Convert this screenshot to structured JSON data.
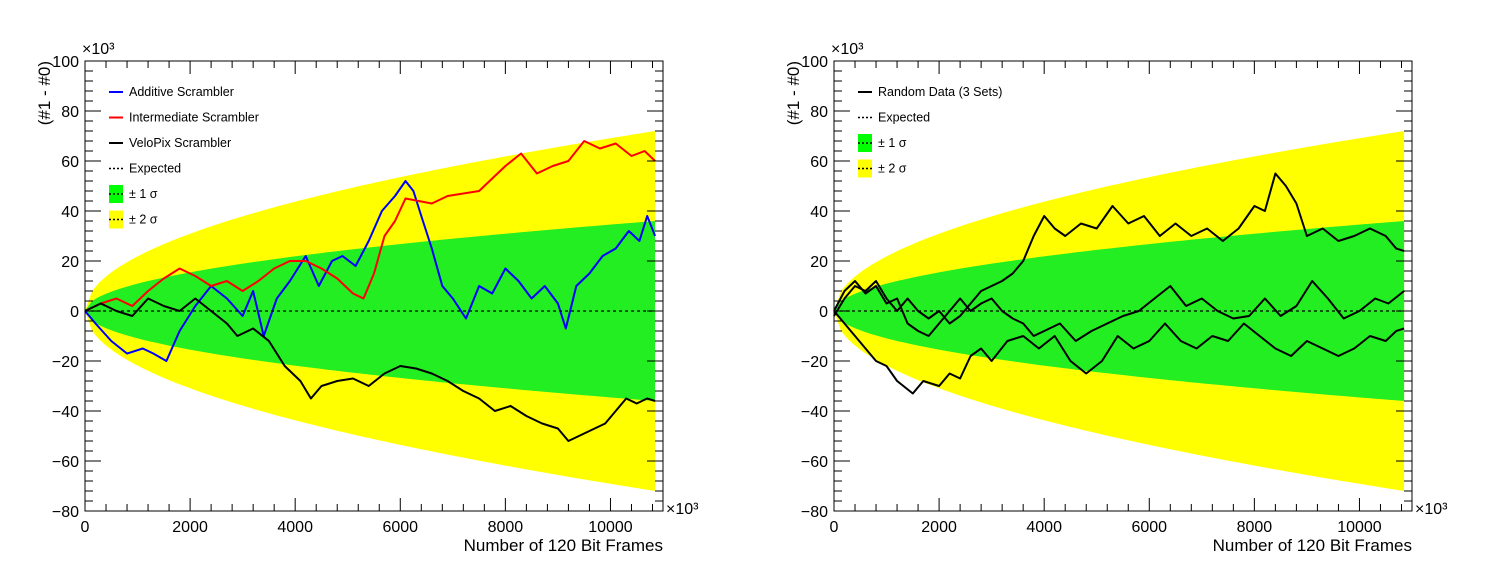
{
  "chart_data": [
    {
      "type": "line",
      "xlabel": "Number of 120 Bit Frames",
      "ylabel": "(#1 - #0)",
      "x_multiplier": "×10³",
      "y_multiplier": "×10³",
      "xlim": [
        0,
        11000
      ],
      "ylim": [
        -80,
        100
      ],
      "xticks": [
        0,
        2000,
        4000,
        6000,
        8000,
        10000
      ],
      "yticks": [
        -80,
        -60,
        -40,
        -20,
        0,
        20,
        40,
        60,
        80,
        100
      ],
      "x_tick_labels": [
        "0",
        "2000",
        "4000",
        "6000",
        "8000",
        "10000"
      ],
      "y_tick_labels": [
        "−80",
        "−60",
        "−40",
        "−20",
        "0",
        "20",
        "40",
        "60",
        "80",
        "100"
      ],
      "band_x_max": 10850,
      "band_1sigma_at_max": 36,
      "band_2sigma_at_max": 72,
      "legend_position": "top-left",
      "legend": [
        {
          "label": "Additive Scrambler",
          "kind": "line",
          "color": "#0000ff"
        },
        {
          "label": "Intermediate Scrambler",
          "kind": "line",
          "color": "#ff0000"
        },
        {
          "label": "VeloPix Scrambler",
          "kind": "line",
          "color": "#000000"
        },
        {
          "label": "Expected",
          "kind": "dashed",
          "color": "#000000"
        },
        {
          "label": "± 1 σ",
          "kind": "band",
          "color": "#00ff00"
        },
        {
          "label": "± 2 σ",
          "kind": "band",
          "color": "#ffff00"
        }
      ],
      "band_colors": {
        "one_sigma": "#22ee22",
        "two_sigma": "#ffff00"
      },
      "series": [
        {
          "name": "Additive Scrambler",
          "color": "#0000ff",
          "x": [
            0,
            200,
            500,
            800,
            1100,
            1300,
            1550,
            1800,
            2100,
            2400,
            2700,
            3000,
            3200,
            3400,
            3650,
            3900,
            4200,
            4450,
            4700,
            4900,
            5150,
            5400,
            5650,
            5900,
            6100,
            6250,
            6400,
            6600,
            6800,
            7000,
            7250,
            7500,
            7750,
            8000,
            8250,
            8500,
            8750,
            9000,
            9150,
            9350,
            9600,
            9850,
            10100,
            10350,
            10550,
            10700,
            10850
          ],
          "y": [
            0,
            -5,
            -12,
            -17,
            -15,
            -17,
            -20,
            -8,
            2,
            10,
            5,
            -2,
            8,
            -10,
            5,
            12,
            22,
            10,
            20,
            22,
            18,
            28,
            40,
            46,
            52,
            48,
            38,
            25,
            10,
            5,
            -3,
            10,
            7,
            17,
            12,
            5,
            10,
            3,
            -7,
            10,
            15,
            22,
            25,
            32,
            28,
            38,
            30
          ]
        },
        {
          "name": "Intermediate Scrambler",
          "color": "#ff0000",
          "x": [
            0,
            300,
            600,
            900,
            1200,
            1500,
            1800,
            2100,
            2400,
            2700,
            3000,
            3300,
            3600,
            3900,
            4200,
            4500,
            4800,
            5100,
            5300,
            5500,
            5700,
            5900,
            6100,
            6350,
            6600,
            6900,
            7200,
            7500,
            7750,
            8000,
            8300,
            8600,
            8900,
            9200,
            9500,
            9800,
            10100,
            10400,
            10650,
            10850
          ],
          "y": [
            0,
            3,
            5,
            2,
            8,
            13,
            17,
            14,
            10,
            12,
            8,
            12,
            17,
            20,
            20,
            17,
            13,
            7,
            5,
            15,
            30,
            36,
            45,
            44,
            43,
            46,
            47,
            48,
            53,
            58,
            63,
            55,
            58,
            60,
            68,
            65,
            67,
            62,
            64,
            60
          ]
        },
        {
          "name": "VeloPix Scrambler",
          "color": "#000000",
          "x": [
            0,
            300,
            600,
            900,
            1200,
            1500,
            1800,
            2100,
            2400,
            2700,
            2900,
            3200,
            3500,
            3800,
            4100,
            4300,
            4500,
            4800,
            5100,
            5400,
            5700,
            6000,
            6300,
            6600,
            6900,
            7200,
            7500,
            7800,
            8100,
            8400,
            8700,
            9000,
            9200,
            9400,
            9600,
            9900,
            10100,
            10300,
            10500,
            10700,
            10850
          ],
          "y": [
            0,
            3,
            0,
            -2,
            5,
            2,
            0,
            5,
            0,
            -5,
            -10,
            -7,
            -12,
            -22,
            -28,
            -35,
            -30,
            -28,
            -27,
            -30,
            -25,
            -22,
            -23,
            -25,
            -28,
            -32,
            -35,
            -40,
            -38,
            -42,
            -45,
            -47,
            -52,
            -50,
            -48,
            -45,
            -40,
            -35,
            -37,
            -35,
            -36
          ]
        },
        {
          "name": "Expected",
          "color": "#000000",
          "dashed": true,
          "x": [
            0,
            10850
          ],
          "y": [
            0,
            0
          ]
        }
      ]
    },
    {
      "type": "line",
      "xlabel": "Number of 120 Bit Frames",
      "ylabel": "(#1 - #0)",
      "x_multiplier": "×10³",
      "y_multiplier": "×10³",
      "xlim": [
        0,
        11000
      ],
      "ylim": [
        -80,
        100
      ],
      "xticks": [
        0,
        2000,
        4000,
        6000,
        8000,
        10000
      ],
      "yticks": [
        -80,
        -60,
        -40,
        -20,
        0,
        20,
        40,
        60,
        80,
        100
      ],
      "x_tick_labels": [
        "0",
        "2000",
        "4000",
        "6000",
        "8000",
        "10000"
      ],
      "y_tick_labels": [
        "−80",
        "−60",
        "−40",
        "−20",
        "0",
        "20",
        "40",
        "60",
        "80",
        "100"
      ],
      "band_x_max": 10850,
      "band_1sigma_at_max": 36,
      "band_2sigma_at_max": 72,
      "legend_position": "top-left",
      "legend": [
        {
          "label": "Random Data (3 Sets)",
          "kind": "line",
          "color": "#000000"
        },
        {
          "label": "Expected",
          "kind": "dashed",
          "color": "#000000"
        },
        {
          "label": "± 1 σ",
          "kind": "band",
          "color": "#00ff00"
        },
        {
          "label": "± 2 σ",
          "kind": "band",
          "color": "#ffff00"
        }
      ],
      "band_colors": {
        "one_sigma": "#22ee22",
        "two_sigma": "#ffff00"
      },
      "series": [
        {
          "color": "#000000",
          "x": [
            0,
            200,
            400,
            600,
            800,
            1000,
            1200,
            1400,
            1600,
            1800,
            2000,
            2200,
            2400,
            2600,
            2800,
            3000,
            3200,
            3400,
            3600,
            3800,
            4000,
            4200,
            4400,
            4700,
            5000,
            5300,
            5600,
            5900,
            6200,
            6500,
            6800,
            7100,
            7400,
            7700,
            8000,
            8200,
            8400,
            8600,
            8800,
            9000,
            9300,
            9600,
            9900,
            10200,
            10500,
            10700,
            10850
          ],
          "y": [
            -2,
            5,
            10,
            8,
            12,
            5,
            0,
            5,
            0,
            -3,
            0,
            -5,
            -2,
            3,
            8,
            10,
            12,
            15,
            20,
            30,
            38,
            33,
            30,
            35,
            33,
            42,
            35,
            38,
            30,
            35,
            30,
            33,
            28,
            33,
            42,
            40,
            55,
            50,
            43,
            30,
            33,
            28,
            30,
            33,
            30,
            25,
            24
          ]
        },
        {
          "color": "#000000",
          "x": [
            0,
            200,
            400,
            600,
            800,
            1000,
            1200,
            1400,
            1600,
            1800,
            2000,
            2200,
            2400,
            2600,
            2800,
            3000,
            3200,
            3400,
            3600,
            3800,
            4000,
            4300,
            4600,
            4900,
            5200,
            5500,
            5800,
            6100,
            6400,
            6700,
            7000,
            7300,
            7600,
            7900,
            8200,
            8500,
            8800,
            9100,
            9400,
            9700,
            10000,
            10300,
            10550,
            10850
          ],
          "y": [
            0,
            8,
            12,
            7,
            10,
            3,
            5,
            -5,
            -8,
            -10,
            -5,
            0,
            5,
            0,
            3,
            5,
            0,
            -3,
            -5,
            -10,
            -8,
            -5,
            -12,
            -8,
            -5,
            -2,
            0,
            5,
            10,
            2,
            5,
            0,
            -3,
            -2,
            5,
            -2,
            2,
            12,
            5,
            -3,
            0,
            5,
            3,
            8
          ]
        },
        {
          "color": "#000000",
          "x": [
            0,
            200,
            400,
            600,
            800,
            1000,
            1200,
            1500,
            1700,
            2000,
            2200,
            2400,
            2600,
            2800,
            3000,
            3300,
            3600,
            3900,
            4200,
            4500,
            4800,
            5100,
            5400,
            5700,
            6000,
            6300,
            6600,
            6900,
            7200,
            7500,
            7800,
            8100,
            8400,
            8700,
            9000,
            9300,
            9600,
            9900,
            10200,
            10500,
            10700,
            10850
          ],
          "y": [
            0,
            -5,
            -10,
            -15,
            -20,
            -22,
            -28,
            -33,
            -28,
            -30,
            -25,
            -27,
            -18,
            -15,
            -20,
            -12,
            -10,
            -15,
            -10,
            -20,
            -25,
            -20,
            -10,
            -15,
            -12,
            -5,
            -12,
            -15,
            -10,
            -12,
            -5,
            -10,
            -15,
            -18,
            -12,
            -15,
            -18,
            -15,
            -10,
            -12,
            -8,
            -7
          ]
        },
        {
          "name": "Expected",
          "color": "#000000",
          "dashed": true,
          "x": [
            0,
            10850
          ],
          "y": [
            0,
            0
          ]
        }
      ]
    }
  ]
}
